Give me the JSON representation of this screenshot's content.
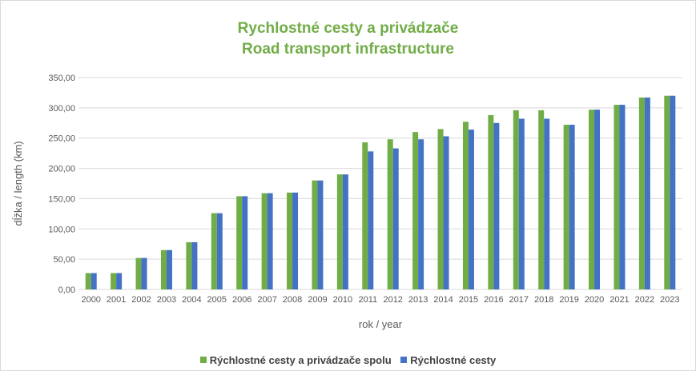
{
  "chart_data": {
    "type": "bar",
    "title": "Rychlostné cesty a privádzače",
    "subtitle": "Road transport infrastructure",
    "xlabel": "rok / year",
    "ylabel": "dĺžka / length (km)",
    "ylim": [
      0,
      350
    ],
    "yticks": [
      "0,00",
      "50,00",
      "100,00",
      "150,00",
      "200,00",
      "250,00",
      "300,00",
      "350,00"
    ],
    "grid": true,
    "legend_position": "bottom",
    "categories": [
      "2000",
      "2001",
      "2002",
      "2003",
      "2004",
      "2005",
      "2006",
      "2007",
      "2008",
      "2009",
      "2010",
      "2011",
      "2012",
      "2013",
      "2014",
      "2015",
      "2016",
      "2017",
      "2018",
      "2019",
      "2020",
      "2021",
      "2022",
      "2023"
    ],
    "series": [
      {
        "name": "Rýchlostné cesty a privádzače spolu",
        "color": "#70ad47",
        "values": [
          27,
          27,
          52,
          65,
          78,
          126,
          154,
          159,
          160,
          180,
          190,
          243,
          248,
          260,
          265,
          277,
          288,
          296,
          296,
          272,
          297,
          305,
          317,
          320
        ]
      },
      {
        "name": "Rýchlostné cesty",
        "color": "#4472c4",
        "values": [
          27,
          27,
          52,
          65,
          78,
          126,
          154,
          159,
          160,
          180,
          190,
          228,
          233,
          248,
          253,
          264,
          275,
          282,
          282,
          272,
          297,
          305,
          317,
          320
        ]
      }
    ]
  },
  "style": {
    "title_color": "#70ad47",
    "axis_text_color": "#595959",
    "grid_color": "#d9d9d9"
  }
}
